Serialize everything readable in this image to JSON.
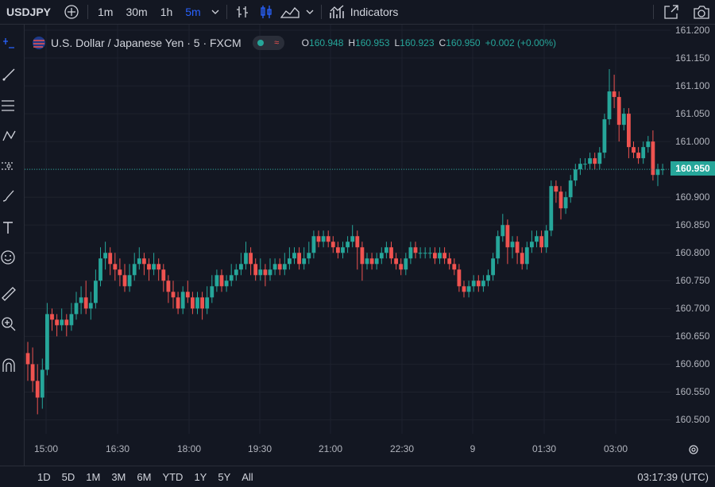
{
  "toolbar": {
    "symbol": "USDJPY",
    "intervals": [
      "1m",
      "30m",
      "1h",
      "5m"
    ],
    "indicators_label": "Indicators"
  },
  "legend": {
    "title": "U.S. Dollar / Japanese Yen · 5 · FXCM",
    "o_label": "O",
    "o_value": "160.948",
    "h_label": "H",
    "h_value": "160.953",
    "l_label": "L",
    "l_value": "160.923",
    "c_label": "C",
    "c_value": "160.950",
    "change": "+0.002 (+0.00%)"
  },
  "price_ticks": [
    "161.200",
    "161.150",
    "161.100",
    "161.050",
    "161.000",
    "160.950",
    "160.900",
    "160.850",
    "160.800",
    "160.750",
    "160.700",
    "160.650",
    "160.600",
    "160.550",
    "160.500"
  ],
  "last_price": "160.950",
  "time_ticks": [
    "15:00",
    "16:30",
    "18:00",
    "19:30",
    "21:00",
    "22:30",
    "9",
    "01:30",
    "03:00"
  ],
  "ranges": [
    "1D",
    "5D",
    "1M",
    "3M",
    "6M",
    "YTD",
    "1Y",
    "5Y",
    "All"
  ],
  "clock": "03:17:39 (UTC)",
  "colors": {
    "up": "#26a69a",
    "down": "#ef5350",
    "bg": "#131722",
    "grid": "#1e222d"
  },
  "chart_data": {
    "type": "candlestick",
    "ylim": [
      160.475,
      161.21
    ],
    "candles": [
      [
        160.62,
        160.6,
        160.64,
        160.57
      ],
      [
        160.6,
        160.57,
        160.63,
        160.55
      ],
      [
        160.57,
        160.54,
        160.6,
        160.51
      ],
      [
        160.54,
        160.59,
        160.61,
        160.52
      ],
      [
        160.59,
        160.69,
        160.71,
        160.58
      ],
      [
        160.69,
        160.68,
        160.7,
        160.66
      ],
      [
        160.68,
        160.67,
        160.69,
        160.65
      ],
      [
        160.67,
        160.68,
        160.7,
        160.66
      ],
      [
        160.68,
        160.67,
        160.69,
        160.65
      ],
      [
        160.67,
        160.69,
        160.71,
        160.66
      ],
      [
        160.69,
        160.71,
        160.73,
        160.68
      ],
      [
        160.71,
        160.72,
        160.74,
        160.69
      ],
      [
        160.72,
        160.7,
        160.75,
        160.69
      ],
      [
        160.7,
        160.71,
        160.73,
        160.68
      ],
      [
        160.71,
        160.75,
        160.77,
        160.7
      ],
      [
        160.75,
        160.79,
        160.81,
        160.74
      ],
      [
        160.79,
        160.8,
        160.82,
        160.77
      ],
      [
        160.8,
        160.78,
        160.81,
        160.76
      ],
      [
        160.78,
        160.77,
        160.8,
        160.75
      ],
      [
        160.77,
        160.76,
        160.79,
        160.74
      ],
      [
        160.76,
        160.74,
        160.78,
        160.73
      ],
      [
        160.74,
        160.76,
        160.78,
        160.73
      ],
      [
        160.76,
        160.78,
        160.8,
        160.75
      ],
      [
        160.78,
        160.79,
        160.81,
        160.77
      ],
      [
        160.79,
        160.78,
        160.8,
        160.76
      ],
      [
        160.78,
        160.77,
        160.79,
        160.75
      ],
      [
        160.77,
        160.78,
        160.8,
        160.76
      ],
      [
        160.78,
        160.77,
        160.79,
        160.75
      ],
      [
        160.77,
        160.75,
        160.78,
        160.73
      ],
      [
        160.75,
        160.73,
        160.76,
        160.71
      ],
      [
        160.73,
        160.72,
        160.75,
        160.7
      ],
      [
        160.72,
        160.7,
        160.73,
        160.69
      ],
      [
        160.7,
        160.73,
        160.74,
        160.69
      ],
      [
        160.73,
        160.72,
        160.75,
        160.71
      ],
      [
        160.72,
        160.7,
        160.73,
        160.69
      ],
      [
        160.7,
        160.72,
        160.73,
        160.69
      ],
      [
        160.72,
        160.7,
        160.73,
        160.68
      ],
      [
        160.7,
        160.72,
        160.74,
        160.69
      ],
      [
        160.72,
        160.74,
        160.76,
        160.71
      ],
      [
        160.74,
        160.76,
        160.77,
        160.73
      ],
      [
        160.76,
        160.74,
        160.77,
        160.73
      ],
      [
        160.74,
        160.75,
        160.76,
        160.73
      ],
      [
        160.75,
        160.76,
        160.78,
        160.74
      ],
      [
        160.76,
        160.77,
        160.78,
        160.75
      ],
      [
        160.77,
        160.78,
        160.8,
        160.76
      ],
      [
        160.78,
        160.8,
        160.82,
        160.77
      ],
      [
        160.8,
        160.78,
        160.81,
        160.76
      ],
      [
        160.78,
        160.76,
        160.79,
        160.75
      ],
      [
        160.76,
        160.77,
        160.79,
        160.75
      ],
      [
        160.77,
        160.76,
        160.78,
        160.74
      ],
      [
        160.76,
        160.77,
        160.79,
        160.75
      ],
      [
        160.77,
        160.78,
        160.79,
        160.76
      ],
      [
        160.78,
        160.77,
        160.79,
        160.76
      ],
      [
        160.77,
        160.78,
        160.8,
        160.76
      ],
      [
        160.78,
        160.79,
        160.81,
        160.77
      ],
      [
        160.79,
        160.8,
        160.81,
        160.78
      ],
      [
        160.8,
        160.78,
        160.81,
        160.77
      ],
      [
        160.78,
        160.79,
        160.81,
        160.77
      ],
      [
        160.79,
        160.8,
        160.82,
        160.78
      ],
      [
        160.8,
        160.83,
        160.84,
        160.79
      ],
      [
        160.83,
        160.82,
        160.84,
        160.81
      ],
      [
        160.82,
        160.83,
        160.84,
        160.81
      ],
      [
        160.83,
        160.82,
        160.84,
        160.81
      ],
      [
        160.82,
        160.81,
        160.83,
        160.8
      ],
      [
        160.81,
        160.8,
        160.82,
        160.79
      ],
      [
        160.8,
        160.81,
        160.82,
        160.79
      ],
      [
        160.81,
        160.82,
        160.83,
        160.8
      ],
      [
        160.82,
        160.83,
        160.85,
        160.81
      ],
      [
        160.83,
        160.81,
        160.84,
        160.77
      ],
      [
        160.81,
        160.78,
        160.82,
        160.75
      ],
      [
        160.78,
        160.79,
        160.8,
        160.77
      ],
      [
        160.79,
        160.78,
        160.8,
        160.77
      ],
      [
        160.78,
        160.79,
        160.8,
        160.77
      ],
      [
        160.79,
        160.8,
        160.81,
        160.78
      ],
      [
        160.8,
        160.81,
        160.82,
        160.79
      ],
      [
        160.81,
        160.79,
        160.82,
        160.78
      ],
      [
        160.79,
        160.78,
        160.8,
        160.77
      ],
      [
        160.78,
        160.77,
        160.79,
        160.76
      ],
      [
        160.77,
        160.79,
        160.8,
        160.76
      ],
      [
        160.79,
        160.81,
        160.82,
        160.78
      ],
      [
        160.81,
        160.8,
        160.82,
        160.79
      ],
      [
        160.8,
        160.8,
        160.81,
        160.79
      ],
      [
        160.8,
        160.8,
        160.81,
        160.79
      ],
      [
        160.8,
        160.8,
        160.81,
        160.79
      ],
      [
        160.8,
        160.79,
        160.81,
        160.78
      ],
      [
        160.79,
        160.8,
        160.81,
        160.78
      ],
      [
        160.8,
        160.79,
        160.81,
        160.78
      ],
      [
        160.79,
        160.78,
        160.8,
        160.77
      ],
      [
        160.78,
        160.77,
        160.79,
        160.76
      ],
      [
        160.77,
        160.74,
        160.78,
        160.73
      ],
      [
        160.74,
        160.73,
        160.75,
        160.72
      ],
      [
        160.73,
        160.74,
        160.75,
        160.72
      ],
      [
        160.74,
        160.75,
        160.76,
        160.73
      ],
      [
        160.75,
        160.74,
        160.76,
        160.73
      ],
      [
        160.74,
        160.75,
        160.76,
        160.73
      ],
      [
        160.75,
        160.76,
        160.77,
        160.74
      ],
      [
        160.76,
        160.79,
        160.8,
        160.75
      ],
      [
        160.79,
        160.83,
        160.84,
        160.78
      ],
      [
        160.83,
        160.85,
        160.87,
        160.82
      ],
      [
        160.85,
        160.81,
        160.86,
        160.78
      ],
      [
        160.81,
        160.82,
        160.83,
        160.79
      ],
      [
        160.82,
        160.8,
        160.83,
        160.78
      ],
      [
        160.8,
        160.78,
        160.81,
        160.77
      ],
      [
        160.78,
        160.81,
        160.82,
        160.77
      ],
      [
        160.81,
        160.82,
        160.84,
        160.8
      ],
      [
        160.82,
        160.83,
        160.84,
        160.81
      ],
      [
        160.83,
        160.81,
        160.84,
        160.8
      ],
      [
        160.81,
        160.84,
        160.85,
        160.8
      ],
      [
        160.84,
        160.92,
        160.93,
        160.83
      ],
      [
        160.92,
        160.91,
        160.93,
        160.89
      ],
      [
        160.91,
        160.88,
        160.92,
        160.86
      ],
      [
        160.88,
        160.9,
        160.91,
        160.87
      ],
      [
        160.9,
        160.93,
        160.94,
        160.89
      ],
      [
        160.93,
        160.95,
        160.96,
        160.92
      ],
      [
        160.95,
        160.96,
        160.97,
        160.94
      ],
      [
        160.96,
        160.96,
        160.97,
        160.95
      ],
      [
        160.96,
        160.97,
        160.98,
        160.95
      ],
      [
        160.97,
        160.96,
        160.98,
        160.95
      ],
      [
        160.96,
        160.98,
        160.99,
        160.95
      ],
      [
        160.98,
        161.04,
        161.05,
        160.97
      ],
      [
        161.04,
        161.09,
        161.13,
        161.03
      ],
      [
        161.09,
        161.08,
        161.12,
        161.06
      ],
      [
        161.08,
        161.03,
        161.09,
        161.0
      ],
      [
        161.03,
        161.05,
        161.06,
        161.02
      ],
      [
        161.05,
        160.99,
        161.06,
        160.97
      ],
      [
        160.99,
        160.98,
        161.0,
        160.97
      ],
      [
        160.98,
        160.97,
        160.99,
        160.96
      ],
      [
        160.97,
        160.99,
        161.0,
        160.96
      ],
      [
        160.99,
        161.0,
        161.01,
        160.98
      ],
      [
        161.0,
        160.94,
        161.02,
        160.93
      ],
      [
        160.94,
        160.95,
        160.96,
        160.92
      ],
      [
        160.95,
        160.95,
        160.96,
        160.94
      ]
    ]
  }
}
